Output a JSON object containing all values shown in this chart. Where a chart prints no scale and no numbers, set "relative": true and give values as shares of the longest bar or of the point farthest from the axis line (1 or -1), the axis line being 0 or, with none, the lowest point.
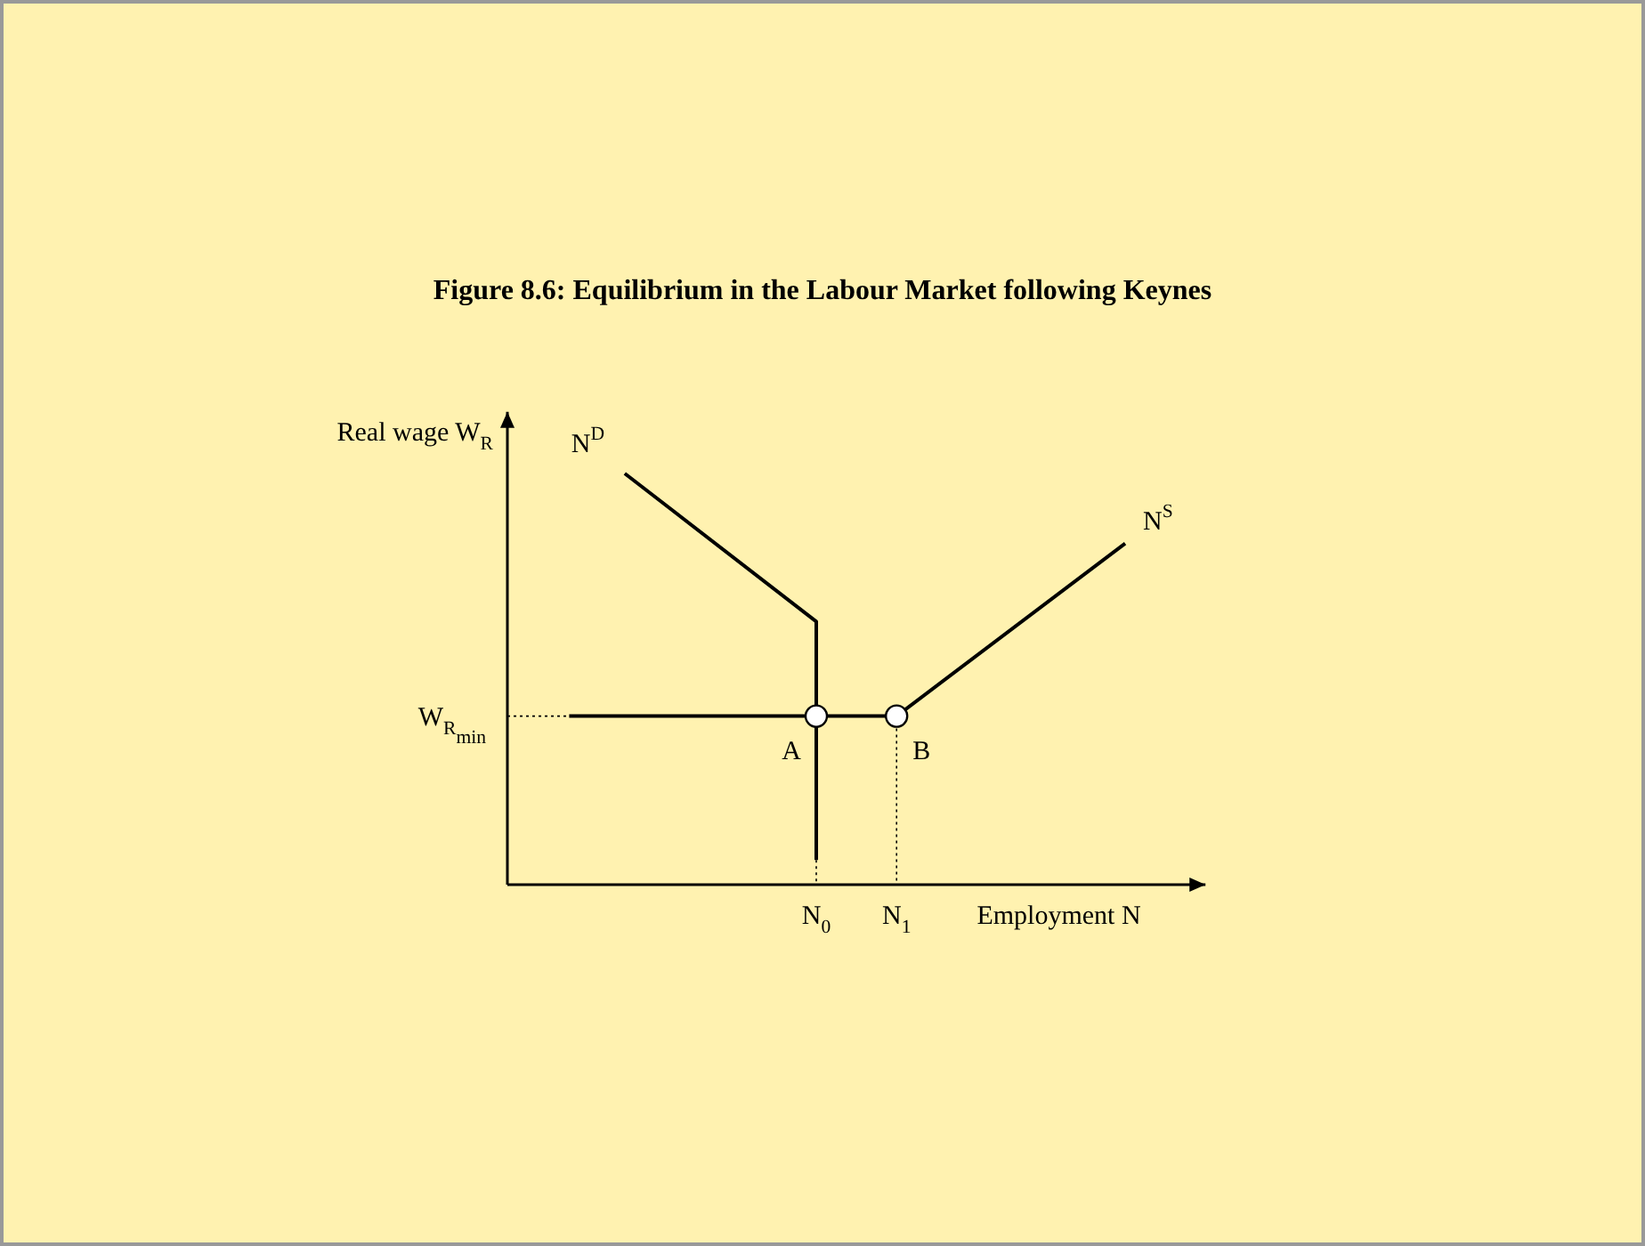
{
  "chart_data": {
    "type": "line",
    "title": "Figure 8.6: Equilibrium in the Labour Market following Keynes",
    "xlabel": "Employment N",
    "ylabel": "Real wage W$_{R}$",
    "relative": true,
    "xlim": [
      0,
      1.13
    ],
    "xticks": [
      {
        "value": 0.5,
        "label": "N$_{0}$"
      },
      {
        "value": 0.63,
        "label": "N$_{1}$"
      }
    ],
    "series": [
      {
        "name": "N$^{D}$",
        "color": "#000000",
        "x": [
          0.19,
          0.5,
          0.5
        ],
        "values": [
          1,
          0.64,
          0.06
        ]
      },
      {
        "name": "N$^{S}$",
        "color": "#000000",
        "x": [
          0.1,
          0.63,
          1
        ],
        "values": [
          0.41,
          0.41,
          0.83
        ]
      },
      {
        "color": "#000000",
        "line_style": "dotted",
        "x": [
          0,
          0.1
        ],
        "values": [
          0.41,
          0.41
        ]
      },
      {
        "color": "#000000",
        "line_style": "dotted",
        "x": [
          0.5,
          0.5
        ],
        "values": [
          0.06,
          0
        ]
      },
      {
        "color": "#000000",
        "line_style": "dotted",
        "x": [
          0.63,
          0.63
        ],
        "values": [
          0.41,
          0
        ]
      },
      {
        "type": "scatter",
        "marker": "circle",
        "color": "#000000",
        "x": [
          0.5,
          0.63
        ],
        "values": [
          0.41,
          0.41
        ]
      }
    ],
    "annotations": [
      {
        "text": "W$_{R}$$_{min}$",
        "x": 0,
        "y": 0.41
      },
      {
        "text": "A",
        "x": 0.5,
        "y": 0.41
      },
      {
        "text": "B",
        "x": 0.63,
        "y": 0.41
      }
    ]
  }
}
